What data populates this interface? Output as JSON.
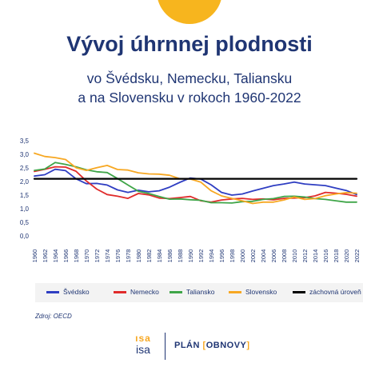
{
  "header": {
    "title": "Vývoj úhrnnej plodnosti",
    "subtitle_line1": "vo Švédsku, Nemecku, Taliansku",
    "subtitle_line2": "a na Slovensku v rokoch 1960-2022"
  },
  "source": "Zdroj: OECD",
  "logos": {
    "isa_mark": "ısa",
    "isa_text": "isa",
    "plan_text": "PLÁN",
    "obnovy_text": "OBNOVY"
  },
  "colors": {
    "title": "#1f3573",
    "accent": "#f7b51e"
  },
  "chart_data": {
    "type": "line",
    "title": "Vývoj úhrnnej plodnosti",
    "xlabel": "",
    "ylabel": "",
    "ylim": [
      0,
      3.5
    ],
    "xlim": [
      1960,
      2022
    ],
    "y_ticks": [
      "0,0",
      "0,5",
      "1,0",
      "1,5",
      "2,0",
      "2,5",
      "3,0",
      "3,5"
    ],
    "x_ticks": [
      "1960",
      "1962",
      "1964",
      "1966",
      "1968",
      "1970",
      "1972",
      "1974",
      "1976",
      "1978",
      "1980",
      "1982",
      "1984",
      "1986",
      "1988",
      "1990",
      "1992",
      "1994",
      "1996",
      "1998",
      "2000",
      "2002",
      "2004",
      "2006",
      "2008",
      "2010",
      "2012",
      "2014",
      "2016",
      "2018",
      "2020",
      "2022"
    ],
    "legend_position": "bottom",
    "grid": false,
    "x": [
      1960,
      1962,
      1964,
      1966,
      1968,
      1970,
      1972,
      1974,
      1976,
      1978,
      1980,
      1982,
      1984,
      1986,
      1988,
      1990,
      1992,
      1994,
      1996,
      1998,
      2000,
      2002,
      2004,
      2006,
      2008,
      2010,
      2012,
      2014,
      2016,
      2018,
      2020,
      2022
    ],
    "series": [
      {
        "name": "Švédsko",
        "color": "#2f3ec2",
        "values": [
          2.2,
          2.25,
          2.45,
          2.4,
          2.1,
          1.92,
          1.93,
          1.87,
          1.69,
          1.6,
          1.68,
          1.62,
          1.66,
          1.79,
          1.97,
          2.13,
          2.09,
          1.88,
          1.6,
          1.5,
          1.54,
          1.65,
          1.75,
          1.85,
          1.91,
          1.98,
          1.91,
          1.88,
          1.85,
          1.76,
          1.67,
          1.52
        ]
      },
      {
        "name": "Nemecko",
        "color": "#e02b2b",
        "values": [
          2.37,
          2.45,
          2.54,
          2.53,
          2.38,
          2.02,
          1.72,
          1.52,
          1.46,
          1.38,
          1.56,
          1.51,
          1.39,
          1.37,
          1.41,
          1.45,
          1.29,
          1.24,
          1.32,
          1.36,
          1.38,
          1.34,
          1.36,
          1.33,
          1.38,
          1.39,
          1.41,
          1.47,
          1.6,
          1.57,
          1.53,
          1.46
        ]
      },
      {
        "name": "Taliansko",
        "color": "#3fa548",
        "values": [
          2.41,
          2.46,
          2.7,
          2.63,
          2.54,
          2.43,
          2.36,
          2.33,
          2.11,
          1.87,
          1.64,
          1.56,
          1.45,
          1.35,
          1.36,
          1.33,
          1.31,
          1.22,
          1.22,
          1.21,
          1.26,
          1.27,
          1.34,
          1.37,
          1.45,
          1.46,
          1.43,
          1.37,
          1.34,
          1.29,
          1.24,
          1.24
        ]
      },
      {
        "name": "Slovensko",
        "color": "#f7a823",
        "values": [
          3.04,
          2.92,
          2.88,
          2.81,
          2.51,
          2.41,
          2.51,
          2.59,
          2.44,
          2.42,
          2.32,
          2.28,
          2.27,
          2.23,
          2.1,
          2.09,
          1.98,
          1.66,
          1.47,
          1.38,
          1.29,
          1.19,
          1.24,
          1.24,
          1.32,
          1.43,
          1.34,
          1.37,
          1.48,
          1.54,
          1.59,
          1.57
        ]
      },
      {
        "name": "záchovná úroveň",
        "color": "#000000",
        "values": [
          2.1,
          2.1,
          2.1,
          2.1,
          2.1,
          2.1,
          2.1,
          2.1,
          2.1,
          2.1,
          2.1,
          2.1,
          2.1,
          2.1,
          2.1,
          2.1,
          2.1,
          2.1,
          2.1,
          2.1,
          2.1,
          2.1,
          2.1,
          2.1,
          2.1,
          2.1,
          2.1,
          2.1,
          2.1,
          2.1,
          2.1,
          2.1
        ]
      }
    ]
  }
}
